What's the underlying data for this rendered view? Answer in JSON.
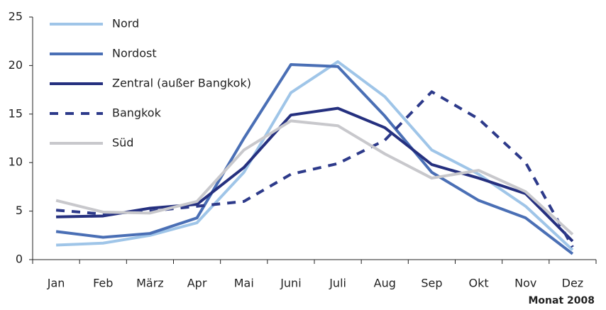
{
  "chart_data": {
    "type": "line",
    "x_label": "Monat 2008",
    "categories": [
      "Jan",
      "Feb",
      "März",
      "Apr",
      "Mai",
      "Juni",
      "Juli",
      "Aug",
      "Sep",
      "Okt",
      "Nov",
      "Dez"
    ],
    "ylim": [
      0,
      25
    ],
    "yticks": [
      0,
      5,
      10,
      15,
      20,
      25
    ],
    "series": [
      {
        "name": "Nord",
        "color": "#9fc5e8",
        "dash": false,
        "values": [
          1.5,
          1.7,
          2.5,
          3.8,
          9.0,
          17.2,
          20.4,
          16.8,
          11.3,
          8.8,
          5.5,
          1.0
        ]
      },
      {
        "name": "Nordost",
        "color": "#4a6fb5",
        "dash": false,
        "values": [
          2.9,
          2.3,
          2.7,
          4.3,
          12.5,
          20.1,
          19.9,
          14.8,
          9.0,
          6.1,
          4.3,
          0.6
        ]
      },
      {
        "name": "Zentral (außer Bangkok)",
        "color": "#25307f",
        "dash": false,
        "values": [
          4.4,
          4.5,
          5.3,
          5.7,
          9.5,
          14.9,
          15.6,
          13.6,
          9.8,
          8.4,
          6.8,
          1.9
        ]
      },
      {
        "name": "Bangkok",
        "color": "#2d3a8a",
        "dash": true,
        "values": [
          5.1,
          4.7,
          5.0,
          5.5,
          6.0,
          8.8,
          9.9,
          12.3,
          17.3,
          14.5,
          10.0,
          1.3
        ]
      },
      {
        "name": "Süd",
        "color": "#c8c8cc",
        "dash": false,
        "values": [
          6.1,
          4.9,
          4.8,
          6.0,
          11.3,
          14.3,
          13.8,
          10.9,
          8.4,
          9.2,
          7.0,
          2.6
        ]
      }
    ]
  }
}
